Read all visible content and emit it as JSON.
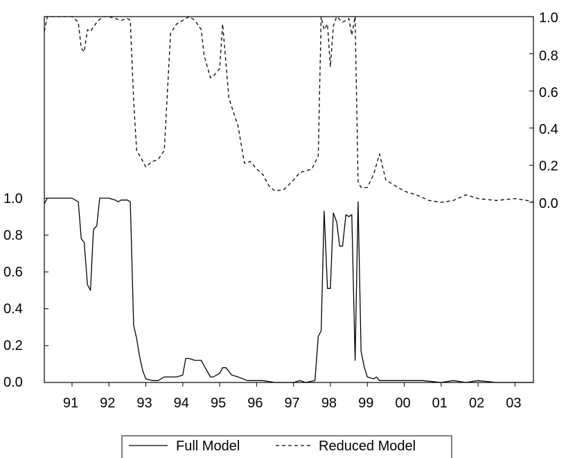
{
  "chart_data": {
    "type": "line",
    "title": "",
    "xlabel": "",
    "x_start": 1990.25,
    "x_end": 2003.5,
    "x_ticks": [
      {
        "label": "91",
        "value": 1991
      },
      {
        "label": "92",
        "value": 1992
      },
      {
        "label": "93",
        "value": 1993
      },
      {
        "label": "94",
        "value": 1994
      },
      {
        "label": "95",
        "value": 1995
      },
      {
        "label": "96",
        "value": 1996
      },
      {
        "label": "97",
        "value": 1997
      },
      {
        "label": "98",
        "value": 1998
      },
      {
        "label": "99",
        "value": 1999
      },
      {
        "label": "00",
        "value": 2000
      },
      {
        "label": "01",
        "value": 2001
      },
      {
        "label": "02",
        "value": 2002
      },
      {
        "label": "03",
        "value": 2003
      }
    ],
    "left_axis": {
      "ylim": [
        0,
        1
      ],
      "ticks": [
        "0.0",
        "0.2",
        "0.4",
        "0.6",
        "0.8",
        "1.0"
      ]
    },
    "right_axis": {
      "ylim": [
        0,
        1
      ],
      "ticks": [
        "0.0",
        "0.2",
        "0.4",
        "0.6",
        "0.8",
        "1.0"
      ]
    },
    "legend": {
      "position": "bottom-center"
    },
    "series": [
      {
        "name": "Full Model",
        "axis": "left",
        "style": "solid",
        "color": "#000000",
        "x": [
          1990.25,
          1990.33,
          1990.5,
          1990.75,
          1990.83,
          1991.0,
          1991.17,
          1991.25,
          1991.33,
          1991.42,
          1991.5,
          1991.58,
          1991.67,
          1991.75,
          1991.83,
          1992.0,
          1992.17,
          1992.25,
          1992.33,
          1992.5,
          1992.58,
          1992.67,
          1992.75,
          1992.83,
          1992.92,
          1993.0,
          1993.17,
          1993.33,
          1993.5,
          1993.67,
          1993.83,
          1994.0,
          1994.08,
          1994.17,
          1994.33,
          1994.5,
          1994.58,
          1994.75,
          1994.83,
          1995.0,
          1995.08,
          1995.17,
          1995.33,
          1995.5,
          1995.75,
          1996.0,
          1996.17,
          1996.5,
          1996.83,
          1997.0,
          1997.17,
          1997.33,
          1997.58,
          1997.67,
          1997.75,
          1997.83,
          1997.92,
          1998.0,
          1998.08,
          1998.17,
          1998.25,
          1998.33,
          1998.42,
          1998.5,
          1998.58,
          1998.67,
          1998.75,
          1998.83,
          1998.92,
          1999.0,
          1999.17,
          1999.25,
          1999.33,
          1999.5,
          2000.0,
          2000.5,
          2001.0,
          2001.33,
          2001.67,
          2002.0,
          2002.5,
          2003.0,
          2003.33,
          2003.5
        ],
        "y": [
          0.97,
          1.0,
          1.0,
          1.0,
          1.0,
          1.0,
          0.98,
          0.78,
          0.76,
          0.53,
          0.5,
          0.83,
          0.85,
          1.0,
          1.0,
          1.0,
          0.99,
          0.98,
          0.99,
          0.99,
          0.98,
          0.31,
          0.24,
          0.14,
          0.06,
          0.02,
          0.01,
          0.01,
          0.03,
          0.03,
          0.03,
          0.04,
          0.13,
          0.13,
          0.12,
          0.12,
          0.09,
          0.03,
          0.03,
          0.05,
          0.08,
          0.08,
          0.04,
          0.03,
          0.01,
          0.01,
          0.01,
          0.0,
          0.0,
          0.0,
          0.01,
          0.0,
          0.01,
          0.25,
          0.28,
          0.93,
          0.51,
          0.51,
          0.92,
          0.87,
          0.74,
          0.74,
          0.91,
          0.9,
          0.91,
          0.12,
          0.98,
          0.17,
          0.08,
          0.03,
          0.02,
          0.03,
          0.01,
          0.01,
          0.01,
          0.01,
          0.0,
          0.01,
          0.0,
          0.01,
          0.0,
          0.0,
          0.0,
          0.0
        ]
      },
      {
        "name": "Reduced Model",
        "axis": "right",
        "style": "dashed",
        "color": "#000000",
        "x": [
          1990.25,
          1990.33,
          1990.5,
          1990.75,
          1991.0,
          1991.17,
          1991.25,
          1991.33,
          1991.42,
          1991.5,
          1991.67,
          1991.83,
          1992.0,
          1992.17,
          1992.33,
          1992.5,
          1992.58,
          1992.67,
          1992.75,
          1992.92,
          1993.0,
          1993.17,
          1993.33,
          1993.5,
          1993.67,
          1993.83,
          1994.0,
          1994.17,
          1994.33,
          1994.5,
          1994.58,
          1994.75,
          1994.83,
          1995.0,
          1995.08,
          1995.25,
          1995.5,
          1995.67,
          1995.83,
          1996.0,
          1996.17,
          1996.33,
          1996.5,
          1996.75,
          1997.0,
          1997.17,
          1997.5,
          1997.67,
          1997.75,
          1997.83,
          1997.92,
          1998.0,
          1998.08,
          1998.17,
          1998.33,
          1998.5,
          1998.58,
          1998.67,
          1998.75,
          1998.83,
          1999.0,
          1999.17,
          1999.33,
          1999.5,
          2000.0,
          2000.33,
          2000.67,
          2001.0,
          2001.33,
          2001.67,
          2002.0,
          2002.5,
          2003.0,
          2003.33,
          2003.5
        ],
        "y": [
          0.92,
          1.0,
          1.0,
          1.0,
          1.0,
          0.97,
          0.83,
          0.81,
          0.93,
          0.92,
          0.97,
          1.0,
          1.0,
          0.99,
          0.98,
          0.99,
          0.98,
          0.55,
          0.28,
          0.22,
          0.19,
          0.22,
          0.23,
          0.28,
          0.91,
          0.96,
          0.98,
          1.0,
          0.98,
          0.93,
          0.79,
          0.67,
          0.68,
          0.72,
          0.96,
          0.56,
          0.41,
          0.21,
          0.22,
          0.18,
          0.15,
          0.09,
          0.06,
          0.07,
          0.12,
          0.16,
          0.18,
          0.25,
          1.0,
          0.93,
          0.96,
          0.73,
          0.95,
          1.0,
          0.97,
          0.99,
          0.9,
          1.0,
          0.11,
          0.08,
          0.08,
          0.15,
          0.26,
          0.12,
          0.06,
          0.04,
          0.01,
          0.0,
          0.01,
          0.04,
          0.02,
          0.01,
          0.02,
          0.01,
          0.0
        ]
      }
    ]
  }
}
